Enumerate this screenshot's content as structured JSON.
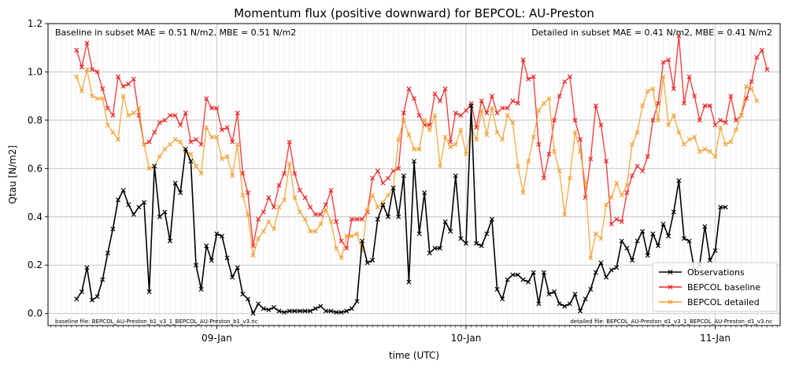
{
  "chart_data": {
    "type": "line",
    "title": "Momentum flux (positive downward) for BEPCOL: AU-Preston",
    "xlabel": "time (UTC)",
    "ylabel": "Qtau [N/m2]",
    "ylim": [
      -0.05,
      1.2
    ],
    "yticks": [
      "0.0",
      "0.2",
      "0.4",
      "0.6",
      "0.8",
      "1.0",
      "1.2"
    ],
    "xlim_hours": [
      -32.5,
      108.5
    ],
    "xticks": [
      {
        "hours": 0,
        "label": "09-Jan"
      },
      {
        "hours": 48,
        "label": "10-Jan"
      },
      {
        "hours": 96,
        "label": "11-Jan"
      }
    ],
    "grid": true,
    "legend_position": "lower-right",
    "x_hours_step": 1,
    "x_start_hours": -27,
    "series": [
      {
        "name": "Observations",
        "color": "#000000",
        "values": [
          0.06,
          0.09,
          0.19,
          0.055,
          0.07,
          0.14,
          0.25,
          0.35,
          0.47,
          0.51,
          0.45,
          0.41,
          0.44,
          0.46,
          0.09,
          0.61,
          0.4,
          0.42,
          0.3,
          0.54,
          0.5,
          0.68,
          0.63,
          0.2,
          0.1,
          0.28,
          0.22,
          0.33,
          0.32,
          0.23,
          0.15,
          0.19,
          0.08,
          0.06,
          0.0,
          0.04,
          0.02,
          0.015,
          0.025,
          0.01,
          0.005,
          0.01,
          0.01,
          0.01,
          0.01,
          0.01,
          0.02,
          0.03,
          0.01,
          0.01,
          0.005,
          0.005,
          0.01,
          0.02,
          0.05,
          0.3,
          0.21,
          0.22,
          0.39,
          0.45,
          0.4,
          0.52,
          0.4,
          0.57,
          0.13,
          0.63,
          0.33,
          0.5,
          0.25,
          0.27,
          0.27,
          0.38,
          0.34,
          0.57,
          0.31,
          0.29,
          0.86,
          0.29,
          0.28,
          0.33,
          0.39,
          0.1,
          0.06,
          0.14,
          0.16,
          0.16,
          0.14,
          0.13,
          0.17,
          0.04,
          0.17,
          0.08,
          0.09,
          0.04,
          0.03,
          0.04,
          0.08,
          0.01,
          0.06,
          0.1,
          0.17,
          0.21,
          0.15,
          0.18,
          0.19,
          0.3,
          0.27,
          0.22,
          0.3,
          0.34,
          0.24,
          0.33,
          0.28,
          0.37,
          0.32,
          0.42,
          0.55,
          0.31,
          0.3,
          0.18,
          0.2,
          0.36,
          0.22,
          0.26,
          0.44,
          0.44
        ]
      },
      {
        "name": "BEPCOL baseline",
        "color": "#ee2222",
        "values": [
          1.09,
          1.02,
          1.12,
          1.01,
          1.0,
          0.93,
          0.85,
          0.82,
          0.98,
          0.94,
          0.95,
          0.97,
          0.82,
          0.7,
          0.71,
          0.75,
          0.79,
          0.8,
          0.82,
          0.82,
          0.78,
          0.83,
          0.71,
          0.72,
          0.7,
          0.89,
          0.85,
          0.85,
          0.76,
          0.77,
          0.71,
          0.83,
          0.58,
          0.5,
          0.28,
          0.39,
          0.42,
          0.48,
          0.44,
          0.53,
          0.58,
          0.71,
          0.58,
          0.51,
          0.48,
          0.44,
          0.41,
          0.41,
          0.45,
          0.51,
          0.38,
          0.3,
          0.27,
          0.39,
          0.39,
          0.39,
          0.42,
          0.56,
          0.59,
          0.54,
          0.56,
          0.59,
          0.6,
          0.83,
          0.93,
          0.89,
          0.82,
          0.78,
          0.78,
          0.91,
          0.88,
          0.93,
          0.71,
          0.83,
          0.82,
          0.84,
          0.87,
          0.77,
          0.88,
          0.83,
          0.9,
          0.83,
          0.85,
          0.85,
          0.88,
          0.87,
          1.05,
          0.97,
          0.98,
          0.7,
          0.56,
          0.66,
          0.8,
          0.9,
          0.96,
          0.98,
          0.8,
          0.72,
          0.48,
          0.64,
          0.86,
          0.78,
          0.63,
          0.37,
          0.39,
          0.38,
          0.5,
          0.57,
          0.61,
          0.59,
          0.65,
          0.8,
          0.87,
          1.04,
          1.05,
          0.93,
          1.15,
          0.87,
          0.98,
          0.9,
          0.8,
          0.86,
          0.86,
          0.78,
          0.8,
          0.79,
          0.9,
          0.8,
          0.82,
          0.89,
          0.96,
          1.06,
          1.09,
          1.01
        ]
      },
      {
        "name": "BEPCOL detailed",
        "color": "#f0a030",
        "values": [
          0.98,
          0.92,
          1.01,
          0.9,
          0.89,
          0.89,
          0.78,
          0.75,
          0.72,
          0.9,
          0.82,
          0.83,
          0.85,
          0.7,
          0.6,
          0.61,
          0.65,
          0.68,
          0.7,
          0.72,
          0.71,
          0.67,
          0.66,
          0.61,
          0.58,
          0.77,
          0.73,
          0.73,
          0.64,
          0.65,
          0.57,
          0.7,
          0.49,
          0.41,
          0.24,
          0.31,
          0.34,
          0.38,
          0.35,
          0.44,
          0.47,
          0.62,
          0.48,
          0.42,
          0.39,
          0.34,
          0.34,
          0.37,
          0.43,
          0.38,
          0.27,
          0.23,
          0.32,
          0.32,
          0.33,
          0.26,
          0.43,
          0.49,
          0.44,
          0.46,
          0.49,
          0.52,
          0.72,
          0.8,
          0.74,
          0.68,
          0.68,
          0.8,
          0.76,
          0.82,
          0.61,
          0.73,
          0.69,
          0.7,
          0.76,
          0.66,
          0.77,
          0.72,
          0.84,
          0.74,
          0.85,
          0.75,
          0.72,
          0.82,
          0.79,
          0.61,
          0.5,
          0.63,
          0.73,
          0.84,
          0.87,
          0.89,
          0.67,
          0.59,
          0.41,
          0.56,
          0.75,
          0.67,
          0.54,
          0.23,
          0.33,
          0.31,
          0.45,
          0.48,
          0.54,
          0.49,
          0.53,
          0.7,
          0.75,
          0.86,
          0.92,
          0.93,
          0.8,
          0.98,
          0.78,
          0.82,
          0.75,
          0.7,
          0.72,
          0.73,
          0.67,
          0.68,
          0.67,
          0.65,
          0.77,
          0.7,
          0.71,
          0.76,
          0.82,
          0.94,
          0.93,
          0.88
        ]
      }
    ],
    "annotations": {
      "top_left": "Baseline in subset MAE = 0.51 N/m2, MBE = 0.51 N/m2",
      "top_right": "Detailed in subset MAE = 0.41 N/m2, MBE = 0.41 N/m2",
      "bottom_left": "baseline file: BEPCOL_AU-Preston_b1_v3_1_BEPCOL_AU-Preston_b1_v3.nc",
      "bottom_right": "detailed file: BEPCOL_AU-Preston_d1_v3_1_BEPCOL_AU-Preston_d1_v3.nc"
    }
  }
}
